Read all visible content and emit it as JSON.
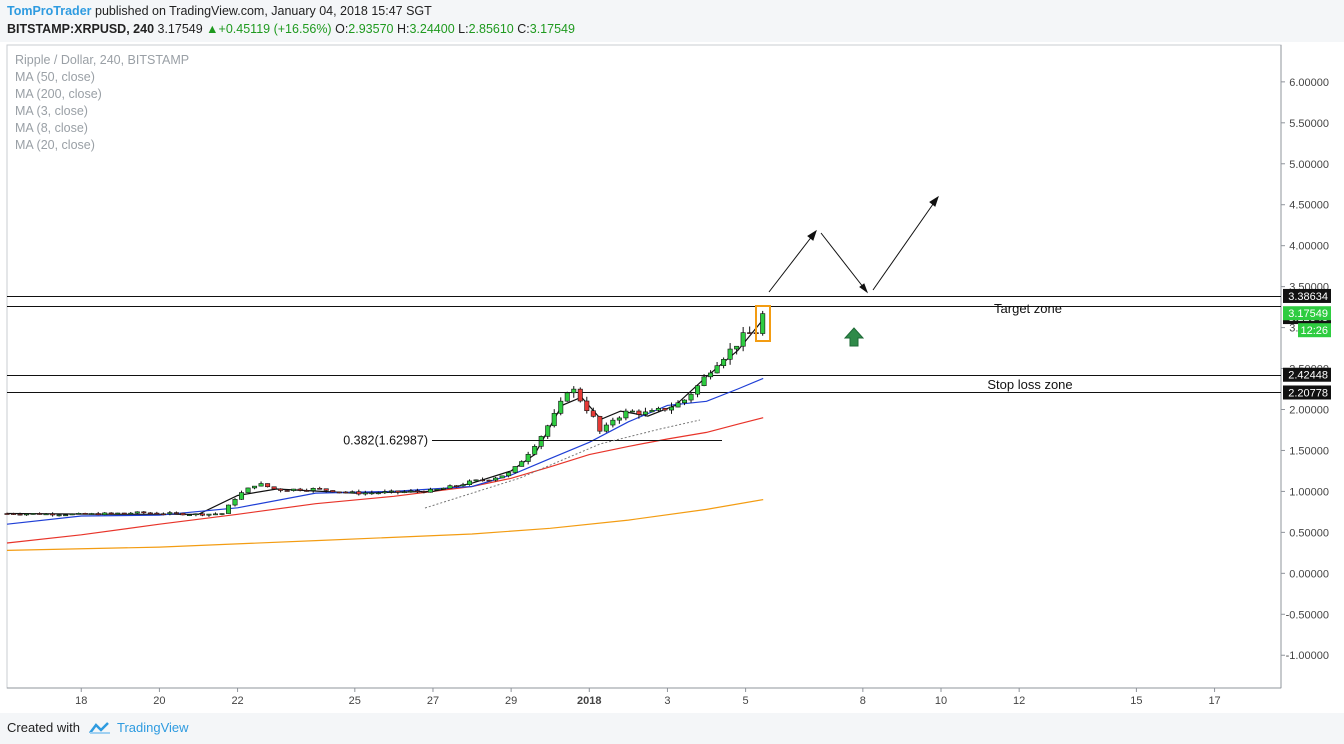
{
  "header": {
    "author": "TomProTrader",
    "published_text": "published on TradingView.com, January 04, 2018 15:47 SGT",
    "symbol": "BITSTAMP:XRPUSD, 240",
    "last": "3.17549",
    "change": "+0.45119 (+16.56%)",
    "open_label": "O:",
    "open": "2.93570",
    "high_label": "H:",
    "high": "3.24400",
    "low_label": "L:",
    "low": "2.85610",
    "close_label": "C:",
    "close": "3.17549"
  },
  "legend": {
    "title": "Ripple / Dollar, 240, BITSTAMP",
    "items": [
      "MA (50, close)",
      "MA (200, close)",
      "MA (3, close)",
      "MA (8, close)",
      "MA (20, close)"
    ]
  },
  "footer": {
    "created_with": "Created with",
    "brand": "TradingView"
  },
  "chart_data": {
    "type": "candlestick",
    "y_range": [
      -1.4,
      6.45
    ],
    "y_ticks": [
      "6.00000",
      "5.50000",
      "5.00000",
      "4.50000",
      "4.00000",
      "3.50000",
      "3.00000",
      "2.50000",
      "2.00000",
      "1.50000",
      "1.00000",
      "0.50000",
      "0.00000",
      "-0.50000",
      "-1.00000"
    ],
    "x_ticks": [
      "18",
      "20",
      "22",
      "25",
      "27",
      "29",
      "2018",
      "3",
      "5",
      "8",
      "10",
      "12",
      "15",
      "17"
    ],
    "x_tick_values": [
      18,
      20,
      22,
      25,
      27,
      29,
      31,
      33,
      35,
      38,
      40,
      42,
      45,
      47
    ],
    "x_range": [
      16.1,
      48.7
    ],
    "candle_interval_days": 0.1667,
    "candles_summary": {
      "first": 16.1,
      "last": 35.45,
      "open_first": 0.73,
      "close_last": 3.17549
    },
    "moving_averages": [
      {
        "name": "MA (50, close)",
        "color": "#e8342a",
        "points": [
          [
            16.1,
            0.37
          ],
          [
            18,
            0.47
          ],
          [
            20,
            0.6
          ],
          [
            22,
            0.72
          ],
          [
            24,
            0.85
          ],
          [
            26,
            0.94
          ],
          [
            28,
            1.06
          ],
          [
            29,
            1.16
          ],
          [
            30,
            1.3
          ],
          [
            31,
            1.45
          ],
          [
            32,
            1.55
          ],
          [
            33,
            1.64
          ],
          [
            34,
            1.72
          ],
          [
            34.8,
            1.82
          ],
          [
            35.45,
            1.9
          ]
        ]
      },
      {
        "name": "MA (200, close)",
        "color": "#f39c12",
        "points": [
          [
            16.1,
            0.28
          ],
          [
            20,
            0.32
          ],
          [
            24,
            0.4
          ],
          [
            28,
            0.48
          ],
          [
            30,
            0.55
          ],
          [
            32,
            0.65
          ],
          [
            34,
            0.78
          ],
          [
            35.45,
            0.9
          ]
        ]
      },
      {
        "name": "MA (3, close)",
        "color": "#111111",
        "points": [
          [
            16.1,
            0.73
          ],
          [
            19,
            0.72
          ],
          [
            21,
            0.72
          ],
          [
            22,
            0.95
          ],
          [
            23,
            1.03
          ],
          [
            25,
            0.98
          ],
          [
            27,
            1.0
          ],
          [
            28,
            1.1
          ],
          [
            29,
            1.25
          ],
          [
            29.6,
            1.45
          ],
          [
            30.3,
            2.05
          ],
          [
            30.8,
            2.15
          ],
          [
            31.3,
            1.88
          ],
          [
            31.8,
            1.98
          ],
          [
            32.5,
            1.92
          ],
          [
            33.2,
            2.05
          ],
          [
            34,
            2.4
          ],
          [
            34.8,
            2.72
          ],
          [
            35.45,
            3.1
          ]
        ]
      },
      {
        "name": "MA (20, close)",
        "color": "#1f3fd6",
        "points": [
          [
            16.1,
            0.6
          ],
          [
            18,
            0.7
          ],
          [
            20,
            0.71
          ],
          [
            22,
            0.8
          ],
          [
            24,
            0.98
          ],
          [
            26,
            1.0
          ],
          [
            28,
            1.06
          ],
          [
            29,
            1.2
          ],
          [
            30,
            1.4
          ],
          [
            31,
            1.6
          ],
          [
            32,
            1.85
          ],
          [
            33,
            2.05
          ],
          [
            34,
            2.1
          ],
          [
            34.8,
            2.25
          ],
          [
            35.45,
            2.38
          ]
        ]
      }
    ],
    "horizontal_levels": [
      {
        "value": 3.38634,
        "label": "3.38634"
      },
      {
        "value": 3.12848,
        "label": "3.12848"
      },
      {
        "value": 2.42448,
        "label": "2.42448"
      },
      {
        "value": 2.20778,
        "label": "2.20778"
      }
    ],
    "current_price_label": "3.17549",
    "countdown_label": "12:26",
    "fib_label": "0.382(1.62987)",
    "fib_value": 1.62987,
    "annotations": [
      "Target zone",
      "Stop loss zone"
    ]
  }
}
